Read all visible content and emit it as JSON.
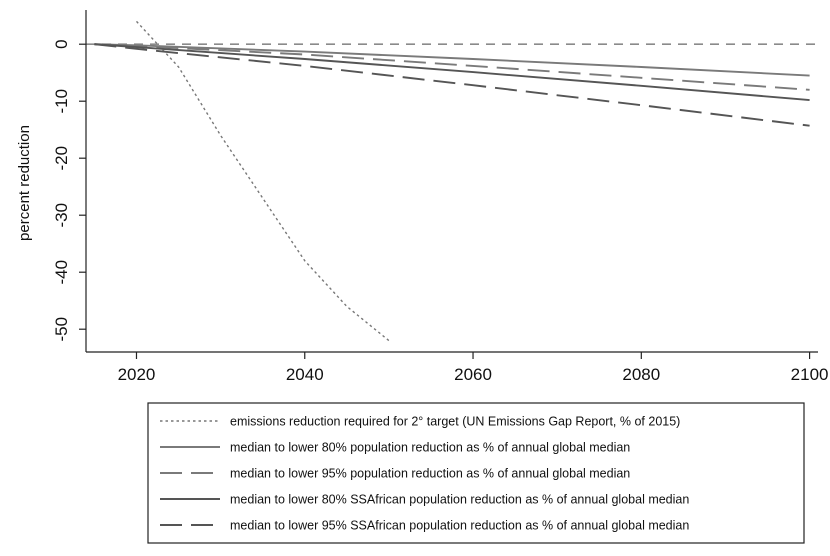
{
  "chart_data": {
    "type": "line",
    "title": "",
    "xlabel": "",
    "ylabel": "percent reduction",
    "xlim": [
      2014,
      2101
    ],
    "ylim": [
      -54,
      6
    ],
    "x_ticks": [
      2020,
      2040,
      2060,
      2080,
      2100
    ],
    "x_tick_labels": [
      "2020",
      "2040",
      "2060",
      "2080",
      "2100"
    ],
    "y_ticks": [
      0,
      -10,
      -20,
      -30,
      -40,
      -50
    ],
    "y_tick_labels": [
      "0",
      "-10",
      "-20",
      "-30",
      "-40",
      "-50"
    ],
    "grid": false,
    "legend_position": "bottom",
    "reference_line": {
      "y": 0,
      "style": "short-dash",
      "color": "#8a8a8a"
    },
    "series": [
      {
        "name": "emissions reduction required for 2° target (UN Emissions Gap Report, % of 2015)",
        "style": "dotted",
        "color": "#777777",
        "x": [
          2020,
          2025,
          2030,
          2035,
          2040,
          2045,
          2050
        ],
        "y": [
          4,
          -4,
          -16,
          -27,
          -38,
          -46,
          -52
        ]
      },
      {
        "name": "median to lower 80% population reduction as % of annual global median",
        "style": "solid",
        "color": "#7a7a7a",
        "x": [
          2015,
          2020,
          2040,
          2060,
          2080,
          2100
        ],
        "y": [
          0,
          -0.2,
          -1.3,
          -2.6,
          -4.0,
          -5.5
        ]
      },
      {
        "name": "median to lower 95% population reduction as % of annual global median",
        "style": "long-dash",
        "color": "#7a7a7a",
        "x": [
          2015,
          2020,
          2040,
          2060,
          2080,
          2100
        ],
        "y": [
          0,
          -0.3,
          -1.8,
          -3.8,
          -5.9,
          -8.0
        ]
      },
      {
        "name": "median to lower 80% SSAfrican population reduction as % of annual global median",
        "style": "solid",
        "color": "#555555",
        "x": [
          2015,
          2020,
          2040,
          2060,
          2080,
          2100
        ],
        "y": [
          0,
          -0.5,
          -2.6,
          -4.9,
          -7.3,
          -9.8
        ]
      },
      {
        "name": "median to lower 95% SSAfrican population reduction as % of annual global median",
        "style": "long-dash",
        "color": "#555555",
        "x": [
          2015,
          2020,
          2040,
          2060,
          2080,
          2100
        ],
        "y": [
          0,
          -0.8,
          -3.8,
          -7.2,
          -10.7,
          -14.3
        ]
      }
    ]
  }
}
